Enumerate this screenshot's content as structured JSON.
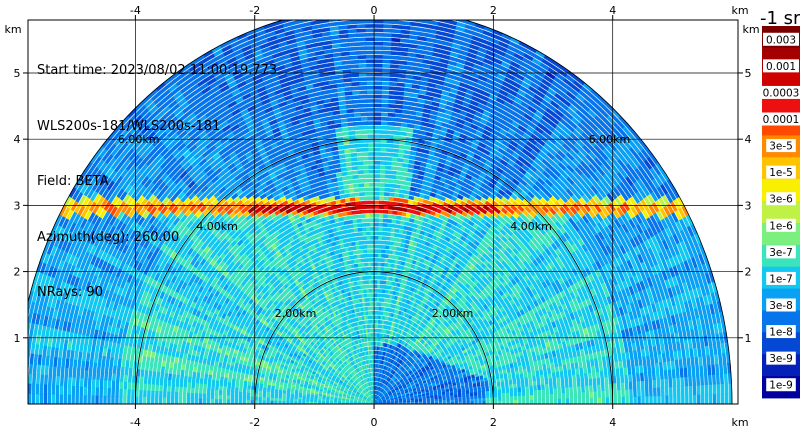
{
  "chart_data": {
    "type": "heatmap",
    "subtype": "RHI radar scan (semicircular range-height display)",
    "info": {
      "line1": "Start time: 2023/08/02 11:00:19.773",
      "line2": "WLS200s-181/WLS200s-181",
      "line3": "Field: BETA",
      "line4": "Azimuth(deg): 260.00",
      "line5": "NRays: 90"
    },
    "axes": {
      "x_unit": "km",
      "y_unit": "km",
      "x_ticks": [
        -4,
        -2,
        0,
        2,
        4
      ],
      "y_ticks": [
        1,
        2,
        3,
        4,
        5
      ],
      "xlim": [
        -5.8,
        6.1
      ],
      "ylim": [
        0,
        5.8
      ],
      "grid": true
    },
    "range_rings": [
      {
        "range_km": 2,
        "label": "2.00km"
      },
      {
        "range_km": 4,
        "label": "4.00km"
      },
      {
        "range_km": 6,
        "label": "6.00km"
      }
    ],
    "max_range_km": 6,
    "colorbar": {
      "title": "-1 sr",
      "labels": [
        "0.003",
        "0.001",
        "0.0003",
        "0.0001",
        "3e-5",
        "1e-5",
        "3e-6",
        "1e-6",
        "3e-7",
        "1e-7",
        "3e-8",
        "1e-8",
        "3e-9",
        "1e-9"
      ],
      "colors": [
        "#7a0000",
        "#a40000",
        "#cf0000",
        "#ee1010",
        "#ff4800",
        "#ff8a00",
        "#ffc400",
        "#f8f000",
        "#bff244",
        "#7cf07e",
        "#3ce4bc",
        "#12c8f0",
        "#0aa0f4",
        "#0674ea",
        "#0448d4",
        "#0420b8",
        "#00009e"
      ]
    },
    "features": {
      "aerosol_layer_top_km": 3.0,
      "background_beta": "1e-7 to 3e-8",
      "layer_peak_beta": "3e-5"
    }
  }
}
